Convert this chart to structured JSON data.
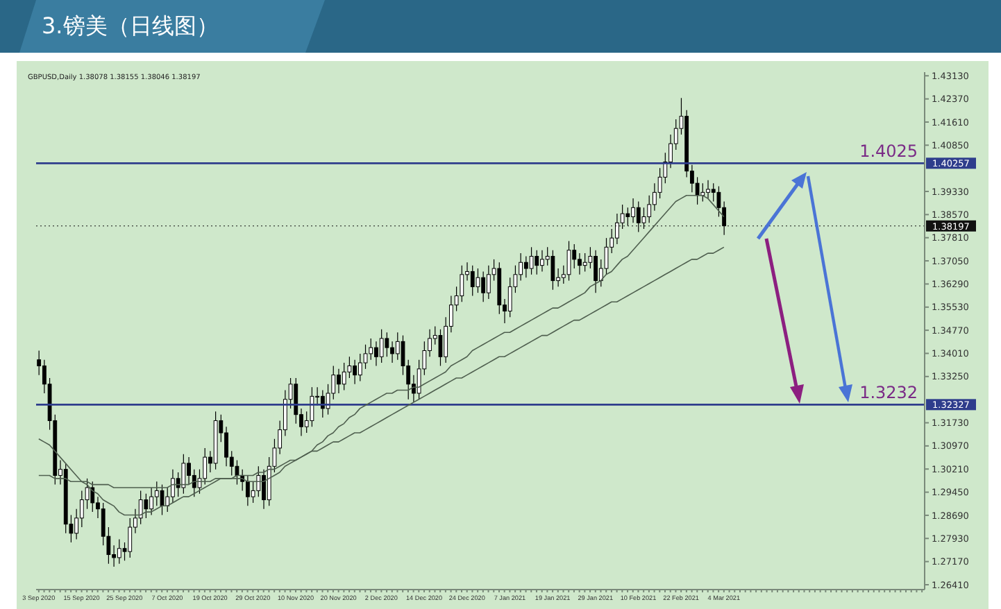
{
  "chart_data": {
    "type": "candlestick",
    "title": "3.镑美（日线图）",
    "categories": [
      "3 Sep 2020",
      null,
      null,
      null,
      null,
      null,
      null,
      null,
      "15 Sep 2020",
      null,
      null,
      null,
      null,
      null,
      null,
      null,
      "25 Sep 2020",
      null,
      null,
      null,
      null,
      null,
      null,
      null,
      "7 Oct 2020",
      null,
      null,
      null,
      null,
      null,
      null,
      null,
      "19 Oct 2020",
      null,
      null,
      null,
      null,
      null,
      null,
      null,
      "29 Oct 2020",
      null,
      null,
      null,
      null,
      null,
      null,
      null,
      "10 Nov 2020",
      null,
      null,
      null,
      null,
      null,
      null,
      null,
      "20 Nov 2020",
      null,
      null,
      null,
      null,
      null,
      null,
      null,
      "2 Dec 2020",
      null,
      null,
      null,
      null,
      null,
      null,
      null,
      "14 Dec 2020",
      null,
      null,
      null,
      null,
      null,
      null,
      null,
      "24 Dec 2020",
      null,
      null,
      null,
      null,
      null,
      null,
      null,
      "7 Jan 2021",
      null,
      null,
      null,
      null,
      null,
      null,
      null,
      "19 Jan 2021",
      null,
      null,
      null,
      null,
      null,
      null,
      null,
      "29 Jan 2021",
      null,
      null,
      null,
      null,
      null,
      null,
      null,
      "10 Feb 2021",
      null,
      null,
      null,
      null,
      null,
      null,
      null,
      "22 Feb 2021",
      null,
      null,
      null,
      null,
      null,
      null,
      null,
      "4 Mar 2021",
      null,
      null,
      null,
      null,
      null,
      null,
      null,
      null,
      null,
      null,
      null,
      null,
      null,
      null,
      null,
      null,
      null,
      null,
      null,
      null,
      null,
      null,
      null,
      null,
      null,
      null,
      null,
      null,
      null,
      null,
      null,
      null,
      null,
      null,
      null,
      null,
      null
    ],
    "series": [
      {
        "type": "candlestick",
        "color": "#000000",
        "ohlc": [
          [
            1.338,
            1.341,
            1.333,
            1.336
          ],
          [
            1.336,
            1.338,
            1.327,
            1.33
          ],
          [
            1.33,
            1.332,
            1.315,
            1.318
          ],
          [
            1.318,
            1.32,
            1.297,
            1.3
          ],
          [
            1.3,
            1.305,
            1.297,
            1.302
          ],
          [
            1.302,
            1.304,
            1.281,
            1.284
          ],
          [
            1.284,
            1.287,
            1.278,
            1.281
          ],
          [
            1.281,
            1.289,
            1.279,
            1.286
          ],
          [
            1.286,
            1.295,
            1.283,
            1.292
          ],
          [
            1.292,
            1.299,
            1.289,
            1.296
          ],
          [
            1.296,
            1.298,
            1.288,
            1.291
          ],
          [
            1.291,
            1.293,
            1.286,
            1.289
          ],
          [
            1.289,
            1.291,
            1.277,
            1.28
          ],
          [
            1.28,
            1.283,
            1.271,
            1.274
          ],
          [
            1.274,
            1.277,
            1.27,
            1.273
          ],
          [
            1.273,
            1.279,
            1.271,
            1.276
          ],
          [
            1.276,
            1.278,
            1.272,
            1.275
          ],
          [
            1.275,
            1.286,
            1.273,
            1.283
          ],
          [
            1.283,
            1.289,
            1.281,
            1.286
          ],
          [
            1.286,
            1.295,
            1.284,
            1.292
          ],
          [
            1.292,
            1.294,
            1.286,
            1.289
          ],
          [
            1.289,
            1.296,
            1.287,
            1.293
          ],
          [
            1.293,
            1.298,
            1.29,
            1.295
          ],
          [
            1.295,
            1.297,
            1.287,
            1.29
          ],
          [
            1.29,
            1.296,
            1.288,
            1.293
          ],
          [
            1.293,
            1.302,
            1.291,
            1.299
          ],
          [
            1.299,
            1.301,
            1.293,
            1.296
          ],
          [
            1.296,
            1.307,
            1.294,
            1.304
          ],
          [
            1.304,
            1.306,
            1.297,
            1.3
          ],
          [
            1.3,
            1.302,
            1.293,
            1.296
          ],
          [
            1.296,
            1.302,
            1.294,
            1.299
          ],
          [
            1.299,
            1.309,
            1.297,
            1.306
          ],
          [
            1.306,
            1.308,
            1.301,
            1.304
          ],
          [
            1.304,
            1.321,
            1.302,
            1.318
          ],
          [
            1.318,
            1.32,
            1.311,
            1.314
          ],
          [
            1.314,
            1.316,
            1.303,
            1.306
          ],
          [
            1.306,
            1.308,
            1.3,
            1.303
          ],
          [
            1.303,
            1.305,
            1.297,
            1.3
          ],
          [
            1.3,
            1.302,
            1.295,
            1.298
          ],
          [
            1.298,
            1.3,
            1.29,
            1.293
          ],
          [
            1.293,
            1.298,
            1.291,
            1.295
          ],
          [
            1.295,
            1.303,
            1.293,
            1.3
          ],
          [
            1.3,
            1.302,
            1.289,
            1.292
          ],
          [
            1.292,
            1.306,
            1.29,
            1.303
          ],
          [
            1.303,
            1.312,
            1.301,
            1.309
          ],
          [
            1.309,
            1.318,
            1.307,
            1.315
          ],
          [
            1.315,
            1.328,
            1.313,
            1.325
          ],
          [
            1.325,
            1.332,
            1.322,
            1.33
          ],
          [
            1.33,
            1.332,
            1.317,
            1.32
          ],
          [
            1.32,
            1.322,
            1.313,
            1.316
          ],
          [
            1.316,
            1.321,
            1.314,
            1.318
          ],
          [
            1.318,
            1.329,
            1.316,
            1.326
          ],
          [
            1.326,
            1.329,
            1.323,
            1.326
          ],
          [
            1.326,
            1.328,
            1.319,
            1.322
          ],
          [
            1.322,
            1.33,
            1.32,
            1.327
          ],
          [
            1.327,
            1.336,
            1.325,
            1.333
          ],
          [
            1.333,
            1.335,
            1.327,
            1.33
          ],
          [
            1.33,
            1.337,
            1.328,
            1.334
          ],
          [
            1.334,
            1.339,
            1.332,
            1.336
          ],
          [
            1.336,
            1.338,
            1.33,
            1.333
          ],
          [
            1.333,
            1.34,
            1.331,
            1.337
          ],
          [
            1.337,
            1.343,
            1.335,
            1.34
          ],
          [
            1.34,
            1.345,
            1.338,
            1.342
          ],
          [
            1.342,
            1.344,
            1.336,
            1.339
          ],
          [
            1.339,
            1.348,
            1.337,
            1.345
          ],
          [
            1.345,
            1.347,
            1.339,
            1.342
          ],
          [
            1.342,
            1.344,
            1.337,
            1.34
          ],
          [
            1.34,
            1.347,
            1.338,
            1.344
          ],
          [
            1.344,
            1.346,
            1.333,
            1.336
          ],
          [
            1.336,
            1.338,
            1.325,
            1.33
          ],
          [
            1.33,
            1.333,
            1.324,
            1.327
          ],
          [
            1.327,
            1.338,
            1.325,
            1.335
          ],
          [
            1.335,
            1.344,
            1.333,
            1.341
          ],
          [
            1.341,
            1.348,
            1.339,
            1.345
          ],
          [
            1.345,
            1.349,
            1.343,
            1.346
          ],
          [
            1.346,
            1.348,
            1.336,
            1.339
          ],
          [
            1.339,
            1.352,
            1.337,
            1.349
          ],
          [
            1.349,
            1.359,
            1.347,
            1.356
          ],
          [
            1.356,
            1.362,
            1.354,
            1.359
          ],
          [
            1.359,
            1.369,
            1.357,
            1.366
          ],
          [
            1.366,
            1.37,
            1.364,
            1.367
          ],
          [
            1.367,
            1.369,
            1.359,
            1.362
          ],
          [
            1.362,
            1.368,
            1.36,
            1.365
          ],
          [
            1.365,
            1.367,
            1.357,
            1.36
          ],
          [
            1.36,
            1.369,
            1.358,
            1.366
          ],
          [
            1.366,
            1.371,
            1.364,
            1.368
          ],
          [
            1.368,
            1.37,
            1.353,
            1.356
          ],
          [
            1.356,
            1.358,
            1.35,
            1.354
          ],
          [
            1.354,
            1.365,
            1.352,
            1.362
          ],
          [
            1.362,
            1.369,
            1.36,
            1.366
          ],
          [
            1.366,
            1.373,
            1.364,
            1.37
          ],
          [
            1.37,
            1.372,
            1.365,
            1.368
          ],
          [
            1.368,
            1.375,
            1.366,
            1.372
          ],
          [
            1.372,
            1.374,
            1.366,
            1.369
          ],
          [
            1.369,
            1.374,
            1.367,
            1.371
          ],
          [
            1.371,
            1.375,
            1.369,
            1.372
          ],
          [
            1.372,
            1.374,
            1.361,
            1.364
          ],
          [
            1.364,
            1.368,
            1.362,
            1.365
          ],
          [
            1.365,
            1.369,
            1.363,
            1.366
          ],
          [
            1.366,
            1.377,
            1.364,
            1.374
          ],
          [
            1.374,
            1.376,
            1.368,
            1.371
          ],
          [
            1.371,
            1.373,
            1.366,
            1.369
          ],
          [
            1.369,
            1.373,
            1.367,
            1.37
          ],
          [
            1.37,
            1.375,
            1.368,
            1.372
          ],
          [
            1.372,
            1.374,
            1.36,
            1.364
          ],
          [
            1.364,
            1.371,
            1.362,
            1.368
          ],
          [
            1.368,
            1.378,
            1.366,
            1.375
          ],
          [
            1.375,
            1.381,
            1.373,
            1.378
          ],
          [
            1.378,
            1.386,
            1.376,
            1.383
          ],
          [
            1.383,
            1.389,
            1.381,
            1.386
          ],
          [
            1.386,
            1.388,
            1.382,
            1.385
          ],
          [
            1.385,
            1.391,
            1.383,
            1.388
          ],
          [
            1.388,
            1.39,
            1.38,
            1.383
          ],
          [
            1.383,
            1.388,
            1.381,
            1.385
          ],
          [
            1.385,
            1.392,
            1.383,
            1.389
          ],
          [
            1.389,
            1.396,
            1.387,
            1.393
          ],
          [
            1.393,
            1.401,
            1.391,
            1.398
          ],
          [
            1.398,
            1.406,
            1.396,
            1.403
          ],
          [
            1.403,
            1.412,
            1.401,
            1.409
          ],
          [
            1.409,
            1.417,
            1.407,
            1.414
          ],
          [
            1.414,
            1.424,
            1.412,
            1.418
          ],
          [
            1.418,
            1.42,
            1.398,
            1.4
          ],
          [
            1.4,
            1.402,
            1.393,
            1.396
          ],
          [
            1.396,
            1.398,
            1.389,
            1.392
          ],
          [
            1.392,
            1.396,
            1.39,
            1.393
          ],
          [
            1.393,
            1.397,
            1.391,
            1.394
          ],
          [
            1.394,
            1.396,
            1.39,
            1.393
          ],
          [
            1.393,
            1.395,
            1.385,
            1.388
          ],
          [
            1.388,
            1.39,
            1.379,
            1.382
          ],
          null,
          null,
          null,
          null,
          null,
          null,
          null,
          null,
          null,
          null,
          null,
          null,
          null,
          null,
          null,
          null,
          null,
          null,
          null,
          null,
          null,
          null,
          null,
          null,
          null,
          null,
          null,
          null,
          null,
          null,
          null,
          null,
          null,
          null,
          null,
          null,
          null
        ]
      },
      {
        "type": "line",
        "color": "#4f5f4f",
        "values": [
          1.312,
          1.311,
          1.31,
          1.308,
          1.306,
          1.304,
          1.302,
          1.3,
          1.298,
          1.297,
          1.295,
          1.294,
          1.292,
          1.291,
          1.29,
          1.288,
          1.287,
          1.287,
          1.287,
          1.287,
          1.288,
          1.288,
          1.289,
          1.29,
          1.29,
          1.291,
          1.292,
          1.293,
          1.293,
          1.294,
          1.295,
          1.296,
          1.297,
          1.298,
          1.299,
          1.299,
          1.299,
          1.299,
          1.299,
          1.298,
          1.298,
          1.298,
          1.298,
          1.299,
          1.3,
          1.301,
          1.303,
          1.304,
          1.305,
          1.306,
          1.307,
          1.308,
          1.31,
          1.311,
          1.313,
          1.314,
          1.316,
          1.317,
          1.319,
          1.32,
          1.322,
          1.323,
          1.324,
          1.325,
          1.326,
          1.327,
          1.327,
          1.328,
          1.328,
          1.328,
          1.329,
          1.329,
          1.33,
          1.331,
          1.332,
          1.333,
          1.334,
          1.336,
          1.337,
          1.338,
          1.339,
          1.341,
          1.342,
          1.343,
          1.344,
          1.345,
          1.346,
          1.347,
          1.347,
          1.348,
          1.349,
          1.35,
          1.351,
          1.352,
          1.353,
          1.354,
          1.355,
          1.355,
          1.356,
          1.357,
          1.358,
          1.359,
          1.36,
          1.362,
          1.363,
          1.364,
          1.366,
          1.367,
          1.369,
          1.371,
          1.372,
          1.374,
          1.376,
          1.378,
          1.38,
          1.382,
          1.384,
          1.386,
          1.388,
          1.39,
          1.391,
          1.392,
          1.392,
          1.392,
          1.392,
          1.391,
          1.389,
          1.387,
          1.385,
          null,
          null,
          null,
          null,
          null,
          null,
          null,
          null,
          null,
          null,
          null,
          null,
          null,
          null,
          null,
          null,
          null,
          null,
          null,
          null,
          null,
          null,
          null,
          null,
          null,
          null,
          null,
          null,
          null,
          null,
          null,
          null,
          null,
          null,
          null,
          null,
          null
        ]
      },
      {
        "type": "line",
        "color": "#4f5f4f",
        "values": [
          1.3,
          1.3,
          1.3,
          1.299,
          1.299,
          1.299,
          1.298,
          1.298,
          1.298,
          1.298,
          1.297,
          1.297,
          1.297,
          1.297,
          1.296,
          1.296,
          1.296,
          1.296,
          1.296,
          1.296,
          1.296,
          1.296,
          1.296,
          1.296,
          1.296,
          1.297,
          1.297,
          1.297,
          1.297,
          1.298,
          1.298,
          1.298,
          1.298,
          1.299,
          1.299,
          1.299,
          1.299,
          1.3,
          1.3,
          1.3,
          1.3,
          1.301,
          1.301,
          1.302,
          1.302,
          1.303,
          1.304,
          1.305,
          1.305,
          1.306,
          1.307,
          1.308,
          1.308,
          1.309,
          1.31,
          1.311,
          1.311,
          1.312,
          1.313,
          1.314,
          1.314,
          1.315,
          1.316,
          1.317,
          1.318,
          1.319,
          1.32,
          1.321,
          1.322,
          1.323,
          1.324,
          1.325,
          1.326,
          1.327,
          1.328,
          1.329,
          1.33,
          1.331,
          1.332,
          1.332,
          1.333,
          1.334,
          1.335,
          1.336,
          1.337,
          1.338,
          1.339,
          1.339,
          1.34,
          1.341,
          1.342,
          1.343,
          1.344,
          1.345,
          1.346,
          1.346,
          1.347,
          1.348,
          1.349,
          1.35,
          1.351,
          1.351,
          1.352,
          1.353,
          1.354,
          1.355,
          1.356,
          1.357,
          1.357,
          1.358,
          1.359,
          1.36,
          1.361,
          1.362,
          1.363,
          1.364,
          1.365,
          1.366,
          1.367,
          1.368,
          1.369,
          1.37,
          1.371,
          1.371,
          1.372,
          1.373,
          1.373,
          1.374,
          1.375,
          null,
          null,
          null,
          null,
          null,
          null,
          null,
          null,
          null,
          null,
          null,
          null,
          null,
          null,
          null,
          null,
          null,
          null,
          null,
          null,
          null,
          null,
          null,
          null,
          null,
          null,
          null,
          null,
          null,
          null,
          null,
          null,
          null,
          null,
          null,
          null,
          null
        ]
      }
    ],
    "ylim": [
      1.2625,
      1.4325
    ],
    "yticks": [
      {
        "value": 1.2641,
        "label": "1.26410"
      },
      {
        "value": 1.2717,
        "label": "1.27170"
      },
      {
        "value": 1.2793,
        "label": "1.27930"
      },
      {
        "value": 1.2869,
        "label": "1.28690"
      },
      {
        "value": 1.2945,
        "label": "1.29450"
      },
      {
        "value": 1.3021,
        "label": "1.30210"
      },
      {
        "value": 1.3097,
        "label": "1.30970"
      },
      {
        "value": 1.3173,
        "label": "1.31730"
      },
      {
        "value": 1.3325,
        "label": "1.33250"
      },
      {
        "value": 1.3401,
        "label": "1.34010"
      },
      {
        "value": 1.3477,
        "label": "1.34770"
      },
      {
        "value": 1.3553,
        "label": "1.35530"
      },
      {
        "value": 1.3629,
        "label": "1.36290"
      },
      {
        "value": 1.3705,
        "label": "1.37050"
      },
      {
        "value": 1.3781,
        "label": "1.37810"
      },
      {
        "value": 1.3857,
        "label": "1.38570"
      },
      {
        "value": 1.3933,
        "label": "1.39330"
      },
      {
        "value": 1.4085,
        "label": "1.40850"
      },
      {
        "value": 1.4161,
        "label": "1.41610"
      },
      {
        "value": 1.4237,
        "label": "1.42370"
      },
      {
        "value": 1.4313,
        "label": "1.43130"
      }
    ],
    "ref_lines": [
      {
        "axis": "y",
        "value": 1.40257,
        "label": "1.40257",
        "color": "#2e3d8c"
      },
      {
        "axis": "y",
        "value": 1.32327,
        "label": "1.32327",
        "color": "#2e3d8c"
      },
      {
        "axis": "y",
        "value": 1.38197,
        "label": "1.38197",
        "color": "#111111",
        "line_style": "dotted"
      }
    ],
    "annotations": [
      "GBPUSD,Daily  1.38078 1.38155 1.38046 1.38197",
      {
        "text": "1.4025",
        "y": 1.4025
      },
      {
        "text": "1.3232",
        "y": 1.3232
      }
    ]
  }
}
